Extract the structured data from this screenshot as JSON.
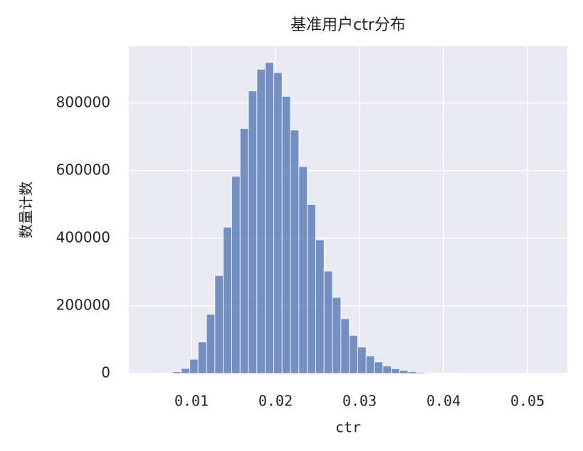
{
  "chart_data": {
    "type": "histogram",
    "title": "基准用户ctr分布",
    "x_label": "ctr",
    "y_label": "数量计数",
    "bins": [
      0.00478,
      0.00578,
      0.00678,
      0.00778,
      0.00878,
      0.00978,
      0.01078,
      0.01178,
      0.01278,
      0.01378,
      0.01478,
      0.01578,
      0.01678,
      0.01778,
      0.01878,
      0.01978,
      0.02078,
      0.02178,
      0.02278,
      0.02378,
      0.02478,
      0.02578,
      0.02678,
      0.02778,
      0.02878,
      0.02978,
      0.03078,
      0.03178,
      0.03278,
      0.03378,
      0.03478,
      0.03578,
      0.03678,
      0.03778,
      0.03878,
      0.03978,
      0.04078,
      0.04178,
      0.04278,
      0.04378,
      0.04478,
      0.04578,
      0.04678,
      0.04778,
      0.04878,
      0.04978,
      0.05078,
      0.05178,
      0.05278
    ],
    "values": [
      0,
      500,
      1500,
      5000,
      15000,
      42000,
      93000,
      175000,
      290000,
      433000,
      583000,
      725000,
      836000,
      900000,
      920000,
      890000,
      820000,
      720000,
      612000,
      500000,
      395000,
      303000,
      225000,
      162000,
      113000,
      78000,
      52000,
      34000,
      22000,
      14000,
      9000,
      5500,
      3500,
      2000,
      1200,
      700,
      400,
      250,
      150,
      100,
      60,
      40,
      25,
      15,
      10,
      6,
      4,
      2
    ],
    "color": "#4c72b0",
    "xlim": [
      0.00254,
      0.05474
    ],
    "ylim": [
      0,
      968000
    ],
    "xticks": [
      0.01,
      0.02,
      0.03,
      0.04,
      0.05
    ],
    "yticks": [
      0,
      200000,
      400000,
      600000,
      800000
    ],
    "grid": true
  }
}
